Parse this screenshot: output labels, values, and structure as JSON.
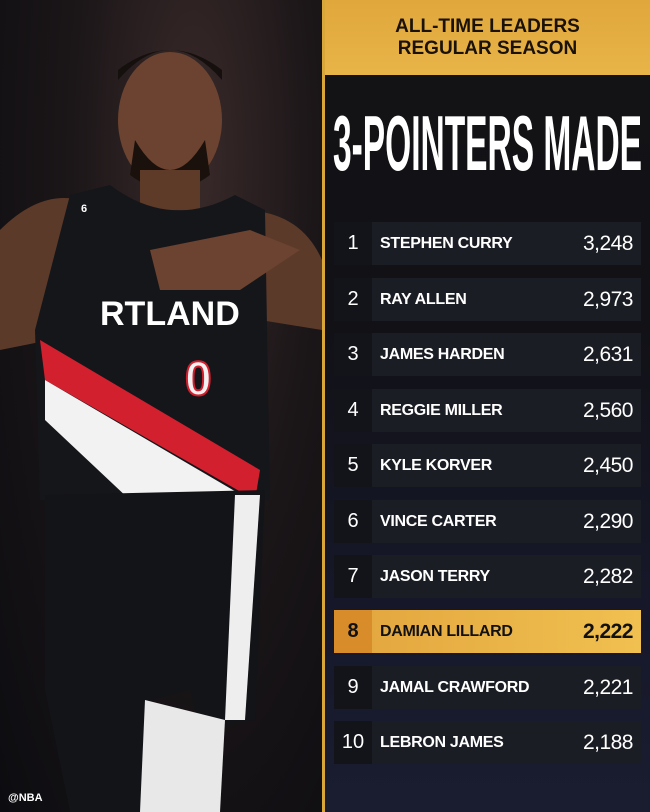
{
  "header": {
    "line1": "ALL-TIME LEADERS",
    "line2": "REGULAR SEASON"
  },
  "title": "3-POINTERS MADE",
  "photo": {
    "jersey_text": "RTLAND",
    "jersey_number": "0",
    "patch_number": "6"
  },
  "credit": "@NBA",
  "colors": {
    "gold": "#e0a73c",
    "highlight": "#f0c050",
    "row_bg": "#1b1d24",
    "jersey_red": "#d2202f"
  },
  "leaders": [
    {
      "rank": "1",
      "name": "STEPHEN CURRY",
      "value": "3,248"
    },
    {
      "rank": "2",
      "name": "RAY ALLEN",
      "value": "2,973"
    },
    {
      "rank": "3",
      "name": "JAMES HARDEN",
      "value": "2,631"
    },
    {
      "rank": "4",
      "name": "REGGIE MILLER",
      "value": "2,560"
    },
    {
      "rank": "5",
      "name": "KYLE KORVER",
      "value": "2,450"
    },
    {
      "rank": "6",
      "name": "VINCE CARTER",
      "value": "2,290"
    },
    {
      "rank": "7",
      "name": "JASON TERRY",
      "value": "2,282"
    },
    {
      "rank": "8",
      "name": "DAMIAN LILLARD",
      "value": "2,222",
      "highlighted": true
    },
    {
      "rank": "9",
      "name": "JAMAL CRAWFORD",
      "value": "2,221"
    },
    {
      "rank": "10",
      "name": "LEBRON JAMES",
      "value": "2,188"
    }
  ]
}
